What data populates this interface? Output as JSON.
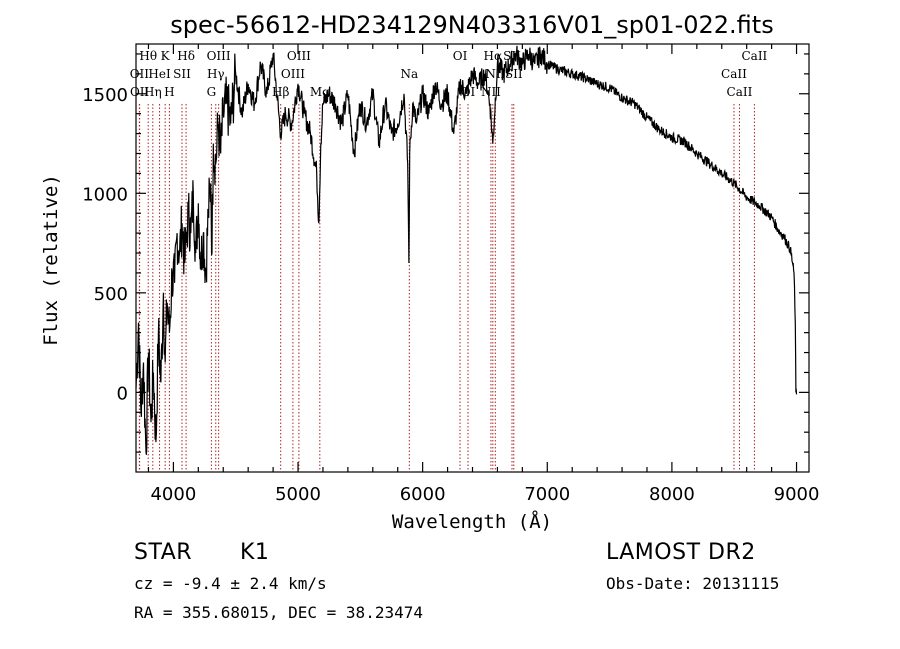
{
  "chart_data": {
    "type": "line",
    "title": "spec-56612-HD234129N403316V01_sp01-022.fits",
    "xlabel": "Wavelength (Å)",
    "ylabel": "Flux (relative)",
    "xlim": [
      3700,
      9100
    ],
    "ylim": [
      -400,
      1750
    ],
    "xticks": [
      4000,
      5000,
      6000,
      7000,
      8000,
      9000
    ],
    "yticks": [
      0,
      500,
      1000,
      1500
    ],
    "grid": false,
    "series": [
      {
        "x": [
          3700,
          3720,
          3740,
          3760,
          3780,
          3800,
          3820,
          3840,
          3860,
          3880,
          3900,
          3920,
          3934,
          3950,
          3968,
          3990,
          4010,
          4030,
          4050,
          4070,
          4090,
          4102,
          4120,
          4140,
          4160,
          4180,
          4200,
          4220,
          4240,
          4260,
          4280,
          4300,
          4310,
          4320,
          4340,
          4360,
          4380,
          4400,
          4430,
          4460,
          4500,
          4550,
          4600,
          4650,
          4700,
          4750,
          4800,
          4830,
          4861,
          4900,
          4950,
          5000,
          5050,
          5100,
          5150,
          5167,
          5183,
          5200,
          5250,
          5300,
          5350,
          5400,
          5450,
          5500,
          5550,
          5600,
          5650,
          5700,
          5750,
          5800,
          5850,
          5880,
          5890,
          5896,
          5920,
          5950,
          6000,
          6050,
          6100,
          6150,
          6200,
          6250,
          6300,
          6350,
          6400,
          6450,
          6500,
          6540,
          6563,
          6600,
          6650,
          6700,
          6750,
          6800,
          6850,
          6900,
          6950,
          7000,
          7100,
          7200,
          7300,
          7400,
          7500,
          7600,
          7700,
          7800,
          7900,
          8000,
          8100,
          8200,
          8300,
          8400,
          8500,
          8600,
          8700,
          8800,
          8850,
          8900,
          8950,
          8980,
          8990,
          8995,
          9000
        ],
        "y": [
          20,
          350,
          -100,
          150,
          -300,
          200,
          -150,
          100,
          -250,
          300,
          50,
          500,
          150,
          450,
          300,
          600,
          550,
          800,
          700,
          850,
          650,
          750,
          900,
          800,
          1000,
          700,
          950,
          650,
          800,
          600,
          900,
          1050,
          700,
          1250,
          1150,
          1350,
          1200,
          1400,
          1450,
          1350,
          1600,
          1400,
          1550,
          1450,
          1650,
          1500,
          1700,
          1500,
          1300,
          1400,
          1350,
          1550,
          1400,
          1300,
          1100,
          850,
          1250,
          1450,
          1500,
          1450,
          1350,
          1500,
          1200,
          1450,
          1350,
          1500,
          1250,
          1450,
          1300,
          1350,
          1500,
          1150,
          650,
          1200,
          1450,
          1350,
          1500,
          1400,
          1550,
          1450,
          1500,
          1300,
          1550,
          1500,
          1600,
          1550,
          1600,
          1450,
          1250,
          1650,
          1600,
          1650,
          1700,
          1650,
          1700,
          1650,
          1700,
          1650,
          1620,
          1600,
          1580,
          1550,
          1530,
          1480,
          1450,
          1380,
          1320,
          1280,
          1260,
          1200,
          1150,
          1100,
          1050,
          980,
          940,
          880,
          820,
          780,
          720,
          600,
          350,
          0,
          -10
        ]
      }
    ],
    "spectral_lines": [
      {
        "label": "Hθ",
        "wavelength": 3798,
        "row": 0
      },
      {
        "label": "OII",
        "wavelength": 3727,
        "row": 1
      },
      {
        "label": "OII",
        "wavelength": 3729,
        "row": 2
      },
      {
        "label": "K",
        "wavelength": 3934,
        "row": 0
      },
      {
        "label": "HeI",
        "wavelength": 3889,
        "row": 1
      },
      {
        "label": "Hη",
        "wavelength": 3835,
        "row": 2
      },
      {
        "label": "SII",
        "wavelength": 4069,
        "row": 1
      },
      {
        "label": "H",
        "wavelength": 3968,
        "row": 2
      },
      {
        "label": "Hδ",
        "wavelength": 4102,
        "row": 0
      },
      {
        "label": "OIII",
        "wavelength": 4363,
        "row": 0
      },
      {
        "label": "Hγ",
        "wavelength": 4340,
        "row": 1
      },
      {
        "label": "G",
        "wavelength": 4305,
        "row": 2
      },
      {
        "label": "OIII",
        "wavelength": 5007,
        "row": 0
      },
      {
        "label": "OIII",
        "wavelength": 4959,
        "row": 1
      },
      {
        "label": "Hβ",
        "wavelength": 4861,
        "row": 2
      },
      {
        "label": "Mg",
        "wavelength": 5175,
        "row": 2
      },
      {
        "label": "Na",
        "wavelength": 5893,
        "row": 1
      },
      {
        "label": "OI",
        "wavelength": 6300,
        "row": 0
      },
      {
        "label": "OI",
        "wavelength": 6364,
        "row": 2
      },
      {
        "label": "Hα",
        "wavelength": 6563,
        "row": 0
      },
      {
        "label": "NII",
        "wavelength": 6583,
        "row": 1
      },
      {
        "label": "NII",
        "wavelength": 6548,
        "row": 2
      },
      {
        "label": "SII",
        "wavelength": 6717,
        "row": 0
      },
      {
        "label": "SII",
        "wavelength": 6731,
        "row": 1
      },
      {
        "label": "CaII",
        "wavelength": 8662,
        "row": 0
      },
      {
        "label": "CaII",
        "wavelength": 8498,
        "row": 1
      },
      {
        "label": "CaII",
        "wavelength": 8542,
        "row": 2
      }
    ]
  },
  "info": {
    "object_type": "STAR",
    "subclass": "K1",
    "survey": "LAMOST DR2",
    "cz": "cz = -9.4 ± 2.4 km/s",
    "obs_date": "Obs-Date: 20131115",
    "coords": "RA = 355.68015, DEC =  38.23474"
  },
  "colors": {
    "spectrum": "#000000",
    "line_marker": "#b22222",
    "background": "#ffffff"
  }
}
